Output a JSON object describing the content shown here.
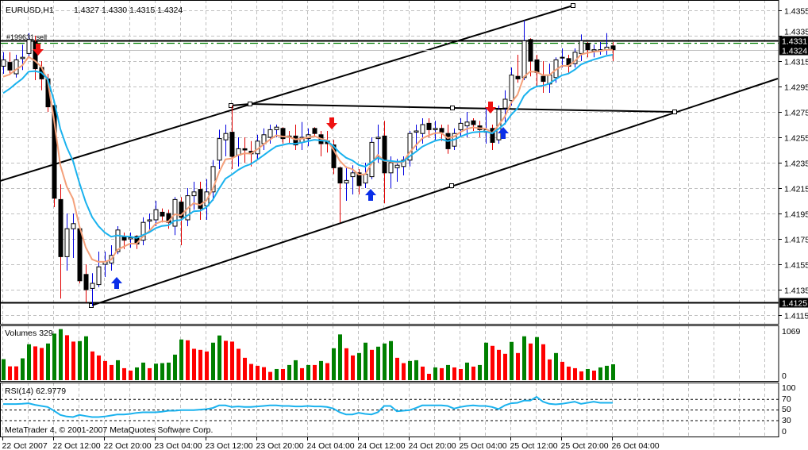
{
  "header": {
    "symbol_tf": "EURUSD,H1",
    "ohlc": "1.4327 1.4330 1.4315 1.4324"
  },
  "order_label": "#199631 sell",
  "volume_pane": {
    "label": "Volumes 329",
    "max_label": "1069",
    "min_label": "0"
  },
  "rsi_pane": {
    "label": "RSI(14) 62.9779",
    "levels": [
      "100",
      "70",
      "50",
      "30",
      "0"
    ]
  },
  "copyright": "MetaTrader 4, © 2001-2007 MetaQuotes Software Corp.",
  "colors": {
    "up_volume": "#008000",
    "down_volume": "#ff0000",
    "ma_fast": "#f4a07a",
    "ma_slow": "#1ab2ee",
    "rsi": "#1ab2ee",
    "order_line": "#008000",
    "sell_arrow": "#ee1111",
    "buy_arrow": "#0a2ee8"
  },
  "chart_data": {
    "type": "candlestick",
    "symbol": "EURUSD",
    "timeframe": "H1",
    "ylim": [
      1.4108,
      1.436
    ],
    "grid": true,
    "price_ticks": [
      "1.4355",
      "1.4335",
      "1.4315",
      "1.4295",
      "1.4275",
      "1.4255",
      "1.4235",
      "1.4215",
      "1.4195",
      "1.4175",
      "1.4155",
      "1.4135",
      "1.4115"
    ],
    "time_ticks": [
      "22 Oct 2007",
      "22 Oct 12:00",
      "22 Oct 20:00",
      "23 Oct 04:00",
      "23 Oct 12:00",
      "23 Oct 20:00",
      "24 Oct 04:00",
      "24 Oct 12:00",
      "24 Oct 20:00",
      "25 Oct 04:00",
      "25 Oct 12:00",
      "25 Oct 20:00",
      "26 Oct 04:00"
    ],
    "horizontal_lines": [
      {
        "price": 1.4331,
        "label": "1.4331"
      },
      {
        "price": 1.4125,
        "label": "1.4125"
      }
    ],
    "bid": {
      "price": 1.4324,
      "label": "1.4324"
    },
    "ohlc": [
      [
        1.4311,
        1.4322,
        1.4305,
        1.4316
      ],
      [
        1.4314,
        1.4322,
        1.4304,
        1.4308
      ],
      [
        1.4305,
        1.432,
        1.4302,
        1.4316
      ],
      [
        1.4317,
        1.4328,
        1.4308,
        1.4318
      ],
      [
        1.4321,
        1.4337,
        1.4318,
        1.4332
      ],
      [
        1.433,
        1.4335,
        1.43,
        1.4309
      ],
      [
        1.431,
        1.4315,
        1.4292,
        1.4301
      ],
      [
        1.4301,
        1.4305,
        1.4275,
        1.4279
      ],
      [
        1.428,
        1.4282,
        1.42,
        1.4207
      ],
      [
        1.4206,
        1.4218,
        1.4128,
        1.4161
      ],
      [
        1.4161,
        1.4195,
        1.415,
        1.4183
      ],
      [
        1.4183,
        1.4195,
        1.416,
        1.4187
      ],
      [
        1.4183,
        1.4185,
        1.414,
        1.4142
      ],
      [
        1.4147,
        1.4155,
        1.4125,
        1.4135
      ],
      [
        1.4136,
        1.4148,
        1.4122,
        1.414
      ],
      [
        1.4139,
        1.4165,
        1.4137,
        1.4153
      ],
      [
        1.4155,
        1.4165,
        1.4145,
        1.4157
      ],
      [
        1.4156,
        1.417,
        1.415,
        1.4162
      ],
      [
        1.4165,
        1.4185,
        1.4163,
        1.4182
      ],
      [
        1.4177,
        1.418,
        1.4167,
        1.4174
      ],
      [
        1.4175,
        1.418,
        1.4168,
        1.4176
      ],
      [
        1.4177,
        1.4178,
        1.4167,
        1.4171
      ],
      [
        1.4174,
        1.4192,
        1.417,
        1.4188
      ],
      [
        1.4189,
        1.4195,
        1.418,
        1.419
      ],
      [
        1.419,
        1.4205,
        1.4185,
        1.4198
      ],
      [
        1.4196,
        1.4199,
        1.4188,
        1.4193
      ],
      [
        1.4195,
        1.4198,
        1.4183,
        1.4188
      ],
      [
        1.4185,
        1.4208,
        1.4178,
        1.4206
      ],
      [
        1.4204,
        1.4208,
        1.417,
        1.4192
      ],
      [
        1.419,
        1.4215,
        1.4185,
        1.4209
      ],
      [
        1.4209,
        1.422,
        1.4198,
        1.4212
      ],
      [
        1.4214,
        1.422,
        1.419,
        1.4199
      ],
      [
        1.4201,
        1.4222,
        1.419,
        1.4212
      ],
      [
        1.4212,
        1.4237,
        1.4205,
        1.4232
      ],
      [
        1.4237,
        1.4261,
        1.423,
        1.4254
      ],
      [
        1.4253,
        1.4265,
        1.424,
        1.4258
      ],
      [
        1.4259,
        1.428,
        1.423,
        1.424
      ],
      [
        1.4241,
        1.4255,
        1.4232,
        1.4246
      ],
      [
        1.4246,
        1.4255,
        1.4235,
        1.4245
      ],
      [
        1.4244,
        1.4252,
        1.4232,
        1.4242
      ],
      [
        1.4242,
        1.4257,
        1.4237,
        1.4252
      ],
      [
        1.425,
        1.4262,
        1.4245,
        1.4257
      ],
      [
        1.4255,
        1.4265,
        1.425,
        1.4261
      ],
      [
        1.4261,
        1.4265,
        1.4255,
        1.4263
      ],
      [
        1.4262,
        1.4263,
        1.425,
        1.4254
      ],
      [
        1.4256,
        1.426,
        1.425,
        1.4255
      ],
      [
        1.4256,
        1.4265,
        1.4245,
        1.4249
      ],
      [
        1.4251,
        1.4267,
        1.4245,
        1.4255
      ],
      [
        1.4254,
        1.4262,
        1.4248,
        1.4257
      ],
      [
        1.4262,
        1.4263,
        1.4255,
        1.4258
      ],
      [
        1.4257,
        1.426,
        1.424,
        1.425
      ],
      [
        1.4252,
        1.426,
        1.4243,
        1.425
      ],
      [
        1.4249,
        1.4253,
        1.4226,
        1.4231
      ],
      [
        1.4231,
        1.4232,
        1.4188,
        1.4219
      ],
      [
        1.4219,
        1.4232,
        1.4205,
        1.4221
      ],
      [
        1.4224,
        1.4233,
        1.421,
        1.4227
      ],
      [
        1.4227,
        1.423,
        1.421,
        1.4217
      ],
      [
        1.4219,
        1.4235,
        1.4215,
        1.4226
      ],
      [
        1.4224,
        1.4255,
        1.4222,
        1.4251
      ],
      [
        1.4254,
        1.4265,
        1.4235,
        1.4255
      ],
      [
        1.4256,
        1.4268,
        1.4203,
        1.4227
      ],
      [
        1.4227,
        1.424,
        1.4215,
        1.4235
      ],
      [
        1.4231,
        1.4238,
        1.422,
        1.4233
      ],
      [
        1.4232,
        1.424,
        1.4225,
        1.4237
      ],
      [
        1.4237,
        1.426,
        1.4232,
        1.4258
      ],
      [
        1.4259,
        1.4265,
        1.4245,
        1.426
      ],
      [
        1.4258,
        1.427,
        1.425,
        1.4265
      ],
      [
        1.4266,
        1.427,
        1.4255,
        1.4261
      ],
      [
        1.4261,
        1.4268,
        1.4253,
        1.4262
      ],
      [
        1.4262,
        1.4265,
        1.4252,
        1.4259
      ],
      [
        1.4258,
        1.4265,
        1.4242,
        1.4246
      ],
      [
        1.4248,
        1.4262,
        1.4245,
        1.4258
      ],
      [
        1.4261,
        1.427,
        1.4255,
        1.4266
      ],
      [
        1.4264,
        1.4275,
        1.4255,
        1.4267
      ],
      [
        1.4268,
        1.427,
        1.426,
        1.4265
      ],
      [
        1.4264,
        1.4268,
        1.4255,
        1.4261
      ],
      [
        1.4259,
        1.4278,
        1.425,
        1.4261
      ],
      [
        1.4262,
        1.4265,
        1.4245,
        1.4251
      ],
      [
        1.4253,
        1.428,
        1.425,
        1.4277
      ],
      [
        1.4278,
        1.4292,
        1.4265,
        1.4285
      ],
      [
        1.4284,
        1.431,
        1.428,
        1.4304
      ],
      [
        1.4303,
        1.432,
        1.4298,
        1.4301
      ],
      [
        1.4302,
        1.4347,
        1.43,
        1.4331
      ],
      [
        1.4332,
        1.4333,
        1.4303,
        1.4315
      ],
      [
        1.4316,
        1.432,
        1.4295,
        1.4306
      ],
      [
        1.4303,
        1.4315,
        1.429,
        1.4299
      ],
      [
        1.4297,
        1.4313,
        1.429,
        1.4304
      ],
      [
        1.4302,
        1.4318,
        1.4298,
        1.4316
      ],
      [
        1.4318,
        1.4325,
        1.431,
        1.4318
      ],
      [
        1.4317,
        1.432,
        1.4305,
        1.4311
      ],
      [
        1.4313,
        1.4325,
        1.431,
        1.4322
      ],
      [
        1.4321,
        1.4336,
        1.4315,
        1.4331
      ],
      [
        1.4329,
        1.433,
        1.4318,
        1.4324
      ],
      [
        1.4323,
        1.4328,
        1.4318,
        1.4324
      ],
      [
        1.4323,
        1.433,
        1.432,
        1.4324
      ],
      [
        1.4324,
        1.4337,
        1.432,
        1.4326
      ],
      [
        1.4327,
        1.433,
        1.4315,
        1.4324
      ]
    ],
    "volumes": [
      435,
      286,
      286,
      452,
      744,
      700,
      667,
      760,
      964,
      1058,
      931,
      799,
      810,
      909,
      595,
      512,
      397,
      314,
      413,
      248,
      198,
      264,
      364,
      248,
      342,
      353,
      364,
      529,
      843,
      826,
      650,
      628,
      595,
      777,
      926,
      815,
      799,
      650,
      463,
      336,
      298,
      270,
      171,
      231,
      231,
      314,
      413,
      248,
      314,
      314,
      397,
      353,
      661,
      948,
      661,
      512,
      562,
      777,
      628,
      694,
      760,
      810,
      463,
      353,
      397,
      413,
      281,
      132,
      264,
      248,
      314,
      264,
      231,
      364,
      281,
      314,
      777,
      711,
      628,
      546,
      793,
      562,
      909,
      760,
      893,
      744,
      430,
      562,
      380,
      281,
      248,
      182,
      231,
      198,
      264,
      298,
      329
    ],
    "volume_range": [
      0,
      1069
    ],
    "rsi": [
      60.5,
      60.5,
      60.5,
      61,
      62,
      59,
      57,
      55,
      48,
      40,
      37,
      36,
      40,
      38,
      36,
      36,
      37,
      39,
      41,
      41,
      42,
      44,
      45,
      45,
      45,
      46,
      48,
      48,
      49,
      49,
      49,
      50,
      51,
      53,
      58,
      58,
      55,
      56,
      55,
      55,
      56,
      57,
      58,
      58,
      57,
      57,
      56,
      56,
      57,
      56,
      56,
      55,
      52,
      45,
      41,
      41,
      44,
      42,
      41,
      45,
      57,
      57,
      47,
      48,
      49,
      53,
      58,
      58,
      58,
      58,
      57,
      52,
      55,
      57,
      58,
      57,
      57,
      55,
      51,
      58,
      62,
      63,
      67,
      67,
      74,
      65,
      61,
      60,
      61,
      63,
      65,
      61,
      63,
      65,
      63,
      63,
      63
    ],
    "rsi_levels": [
      70,
      50,
      30
    ],
    "rsi_range": [
      0,
      100
    ]
  }
}
